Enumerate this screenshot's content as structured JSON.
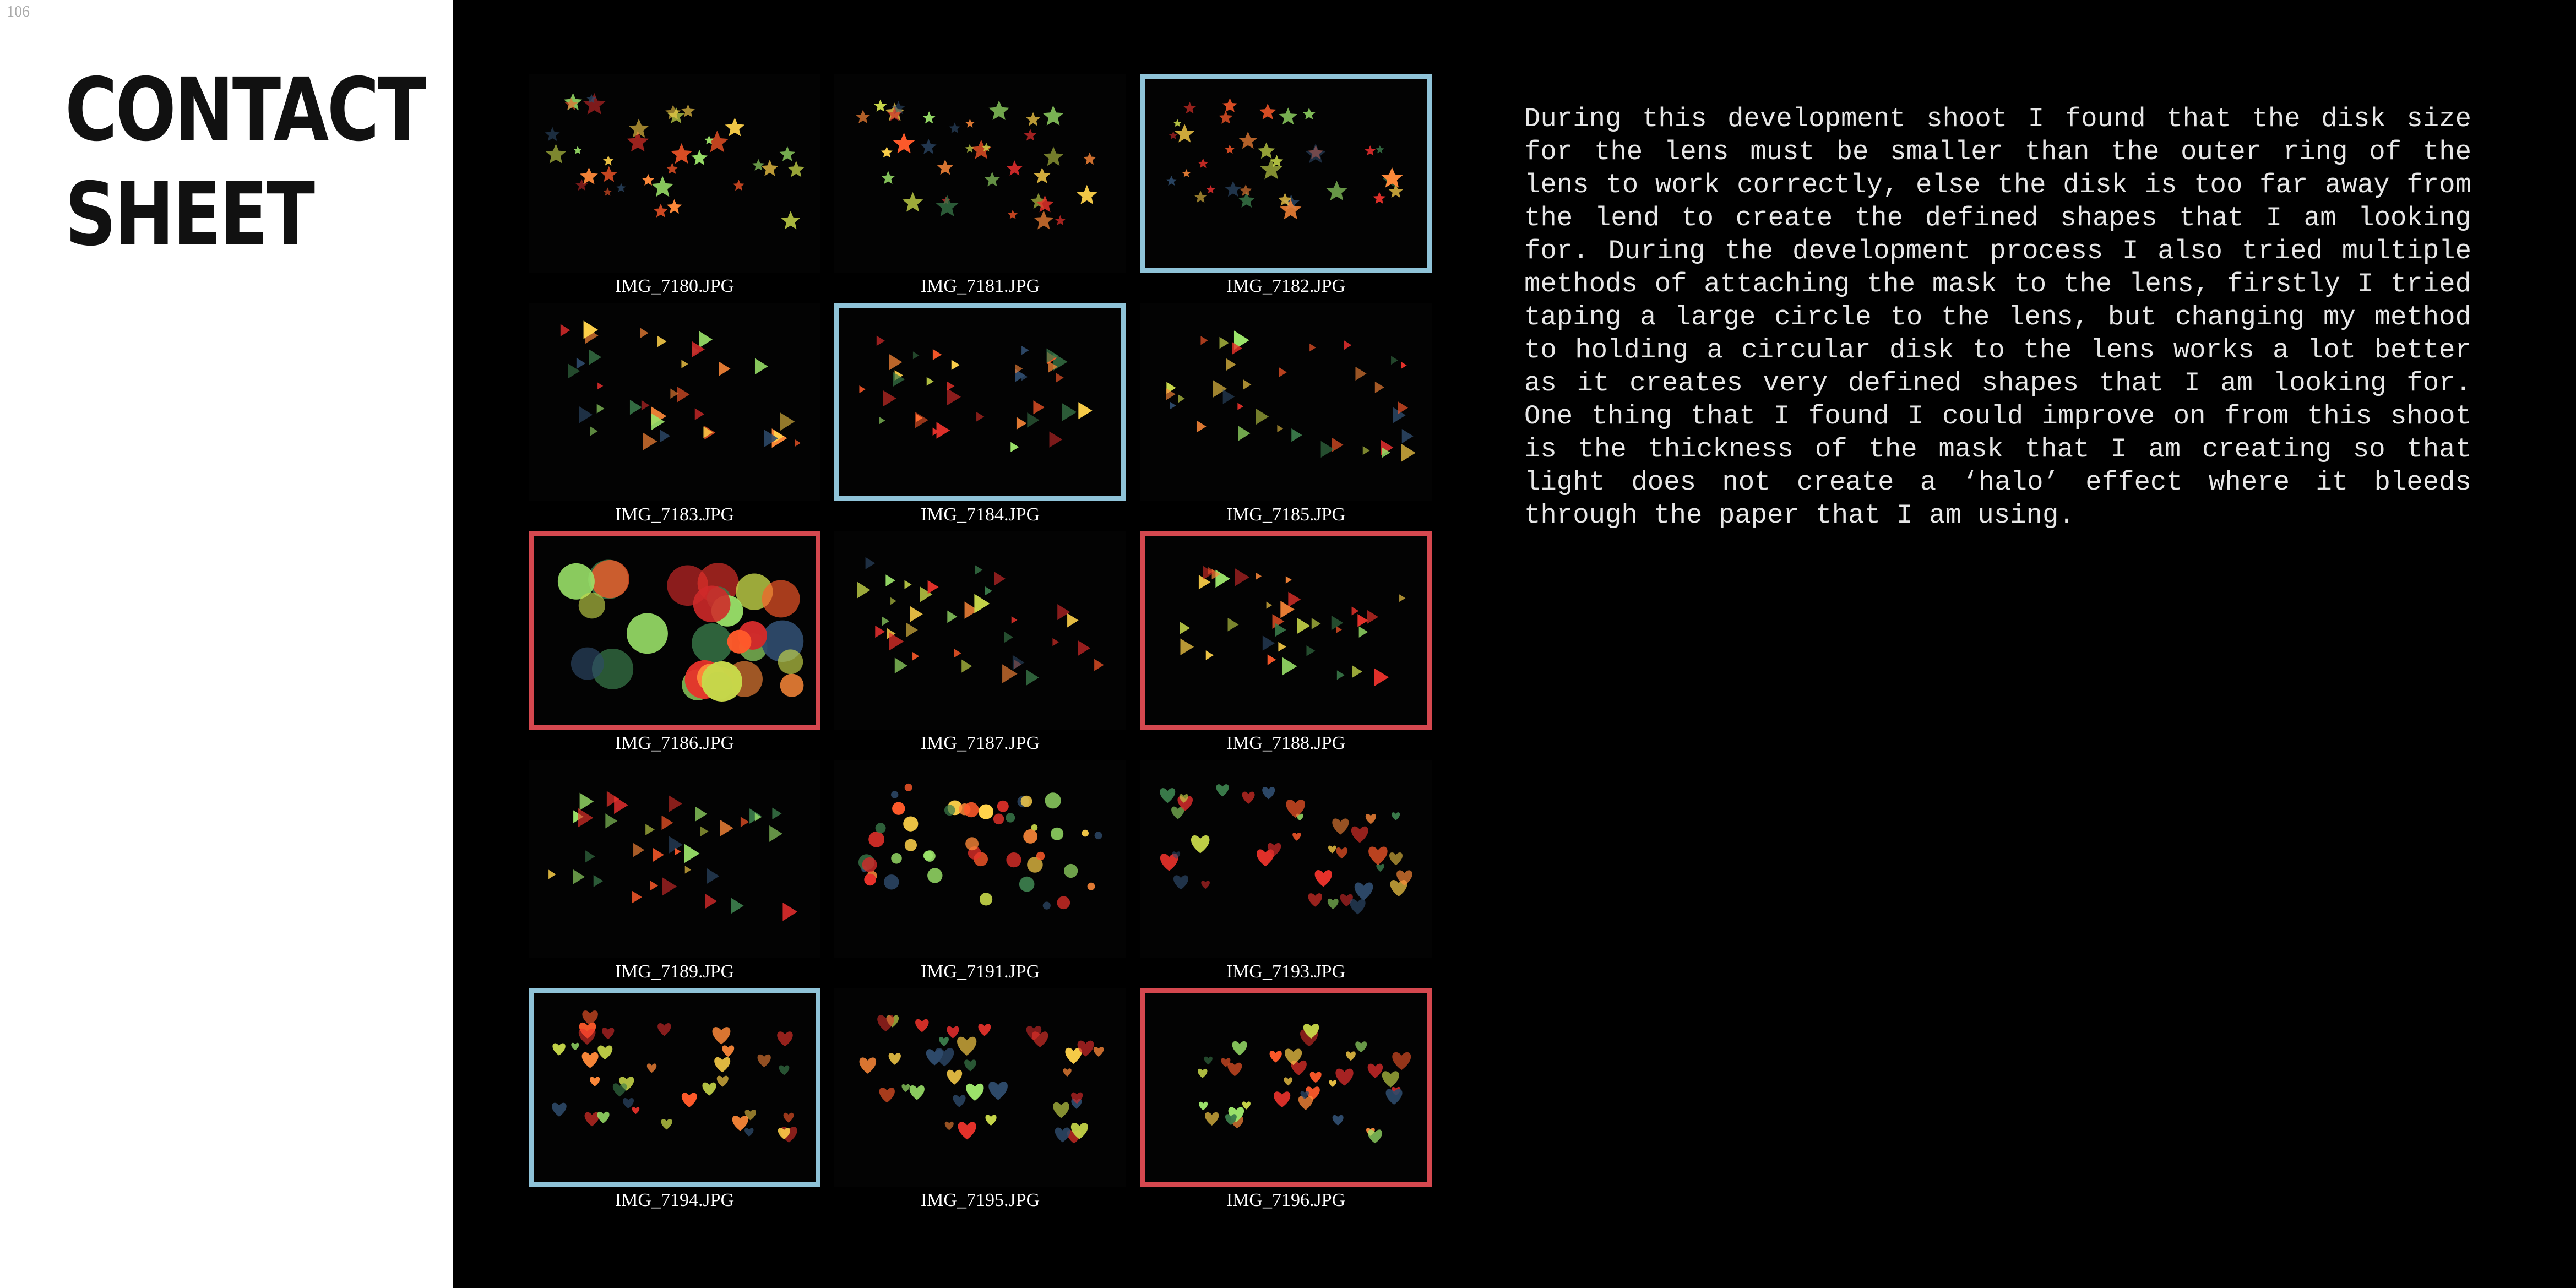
{
  "page": {
    "number": "106",
    "title_line1": "CONTACT",
    "title_line2": "SHEET"
  },
  "colors": {
    "highlight_blue": "#8fc3d8",
    "highlight_red": "#d5484f",
    "background_dark": "#000000",
    "background_light": "#ffffff"
  },
  "contact_sheet": {
    "photos": [
      {
        "filename": "IMG_7180.JPG",
        "highlight": "none",
        "motif": "stars"
      },
      {
        "filename": "IMG_7181.JPG",
        "highlight": "none",
        "motif": "stars"
      },
      {
        "filename": "IMG_7182.JPG",
        "highlight": "blue",
        "motif": "stars"
      },
      {
        "filename": "IMG_7183.JPG",
        "highlight": "none",
        "motif": "triangles"
      },
      {
        "filename": "IMG_7184.JPG",
        "highlight": "blue",
        "motif": "triangles"
      },
      {
        "filename": "IMG_7185.JPG",
        "highlight": "none",
        "motif": "triangles"
      },
      {
        "filename": "IMG_7186.JPG",
        "highlight": "red",
        "motif": "circles"
      },
      {
        "filename": "IMG_7187.JPG",
        "highlight": "none",
        "motif": "triangles"
      },
      {
        "filename": "IMG_7188.JPG",
        "highlight": "red",
        "motif": "triangles"
      },
      {
        "filename": "IMG_7189.JPG",
        "highlight": "none",
        "motif": "triangles"
      },
      {
        "filename": "IMG_7191.JPG",
        "highlight": "none",
        "motif": "dots"
      },
      {
        "filename": "IMG_7193.JPG",
        "highlight": "none",
        "motif": "hearts"
      },
      {
        "filename": "IMG_7194.JPG",
        "highlight": "blue",
        "motif": "hearts"
      },
      {
        "filename": "IMG_7195.JPG",
        "highlight": "none",
        "motif": "hearts"
      },
      {
        "filename": "IMG_7196.JPG",
        "highlight": "red",
        "motif": "hearts"
      }
    ]
  },
  "description": "During this development shoot I found that the disk size for the lens must be smaller than the outer ring of the lens to work correctly, else the disk is too far away from the lend to create the defined shapes that I am looking for. During the development process I also tried multiple methods of attaching the mask to the lens, firstly I tried taping a large circle to the lens, but changing my method to holding a circular disk to the lens works a lot better as it creates very defined shapes that I am looking for. One thing that I found I could improve on from this shoot is the thickness of the mask that I am creating so that light does not create a ‘halo’ effect where it bleeds through the paper that I am using."
}
